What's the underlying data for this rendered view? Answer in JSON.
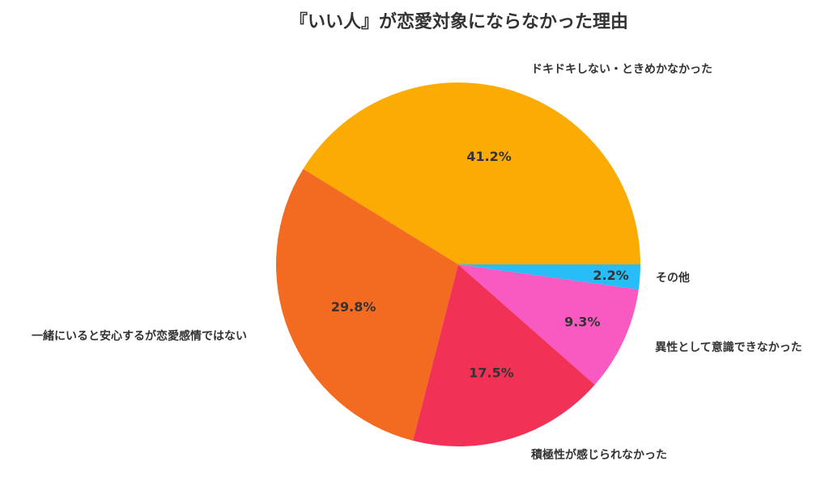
{
  "chart_data": {
    "type": "pie",
    "title": "『いい人』が恋愛対象にならなかった理由",
    "start_angle_deg": 0,
    "direction": "counterclockwise",
    "slices": [
      {
        "label": "ドキドキしない・ときめかなかった",
        "value": 41.2,
        "pct_text": "41.2%",
        "color": "#FBAB02"
      },
      {
        "label": "一緒にいると安心するが恋愛感情ではない",
        "value": 29.8,
        "pct_text": "29.8%",
        "color": "#F26B21"
      },
      {
        "label": "積極性が感じられなかった",
        "value": 17.5,
        "pct_text": "17.5%",
        "color": "#F23156"
      },
      {
        "label": "異性として意識できなかった",
        "value": 9.3,
        "pct_text": "9.3%",
        "color": "#F85AC1"
      },
      {
        "label": "その他",
        "value": 2.2,
        "pct_text": "2.2%",
        "color": "#27BDF9"
      }
    ],
    "legend": "none"
  }
}
